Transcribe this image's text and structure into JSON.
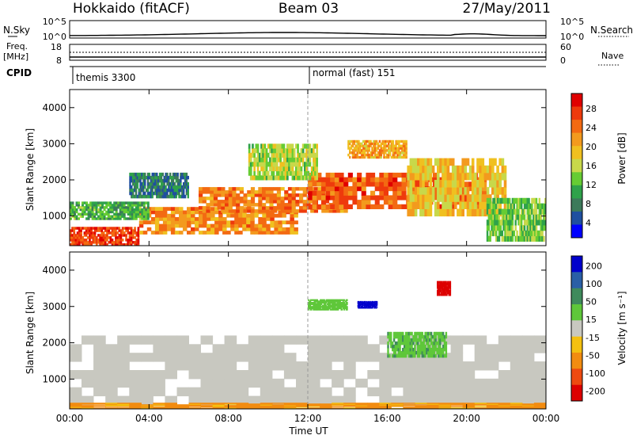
{
  "header": {
    "station": "Hokkaido (fitACF)",
    "beam": "Beam 03",
    "date": "27/May/2011"
  },
  "param_panels": {
    "nsky_label": "N.Sky",
    "nsky_ticks": [
      "10^5",
      "10^0"
    ],
    "nsearch_label": "N.Search",
    "nsearch_ticks": [
      "10^5",
      "10^0"
    ],
    "freq_label": "Freq.",
    "freq_unit": "[MHz]",
    "freq_ticks": [
      "18",
      "8"
    ],
    "nave_label": "Nave",
    "nave_ticks": [
      "60",
      "0"
    ],
    "cpid_label": "CPID",
    "cpid_segments": [
      {
        "start_hour": 0,
        "text": "themis 3300"
      },
      {
        "start_hour": 12,
        "text": "normal (fast) 151"
      }
    ]
  },
  "colors": {
    "power": [
      "#0000ff",
      "#1f4fa0",
      "#3c7a5a",
      "#2fa24a",
      "#66cc33",
      "#c8d84a",
      "#f0c020",
      "#f39a1e",
      "#f36a12",
      "#ee3a0c",
      "#e00000"
    ],
    "velocity": [
      "#0000cc",
      "#2a5fa6",
      "#3f8a5c",
      "#5fc73a",
      "#c8c8c0",
      "#f4c010",
      "#f28c10",
      "#ee4a10",
      "#dd0000"
    ]
  },
  "chart_data": [
    {
      "type": "heatmap",
      "title": "",
      "xlabel": "",
      "ylabel": "Slant Range [km]",
      "xlim": [
        0,
        24
      ],
      "ylim": [
        180,
        4500
      ],
      "x_ticks": [
        0,
        4,
        8,
        12,
        16,
        20,
        24
      ],
      "y_ticks": [
        1000,
        2000,
        3000,
        4000
      ],
      "colorbar_label": "Power [dB]",
      "colorbar_range": [
        0,
        30
      ],
      "colorbar_ticks": [
        "28",
        "24",
        "20",
        "16",
        "12",
        "8",
        "4"
      ],
      "regions": [
        {
          "t0": 0.0,
          "t1": 3.5,
          "r0": 180,
          "r1": 700,
          "value": 27
        },
        {
          "t0": 3.5,
          "t1": 11.5,
          "r0": 500,
          "r1": 1250,
          "value": 22
        },
        {
          "t0": 6.5,
          "t1": 14.0,
          "r0": 1100,
          "r1": 1800,
          "value": 23
        },
        {
          "t0": 12.0,
          "t1": 21.0,
          "r0": 1200,
          "r1": 2200,
          "value": 25
        },
        {
          "t0": 9.0,
          "t1": 12.5,
          "r0": 2000,
          "r1": 3000,
          "value": 14
        },
        {
          "t0": 14.0,
          "t1": 17.0,
          "r0": 2600,
          "r1": 3100,
          "value": 20
        },
        {
          "t0": 17.0,
          "t1": 22.0,
          "r0": 1000,
          "r1": 2600,
          "value": 18
        },
        {
          "t0": 21.0,
          "t1": 24.0,
          "r0": 300,
          "r1": 1500,
          "value": 12
        },
        {
          "t0": 0.0,
          "t1": 4.0,
          "r0": 900,
          "r1": 1400,
          "value": 10
        },
        {
          "t0": 3.0,
          "t1": 6.0,
          "r0": 1500,
          "r1": 2200,
          "value": 6
        }
      ]
    },
    {
      "type": "heatmap",
      "title": "",
      "xlabel": "Time UT",
      "ylabel": "Slant Range [km]",
      "xlim": [
        0,
        24
      ],
      "ylim": [
        180,
        4500
      ],
      "x_ticks": [
        0,
        4,
        8,
        12,
        16,
        20,
        24
      ],
      "x_tick_labels": [
        "00:00",
        "04:00",
        "08:00",
        "12:00",
        "16:00",
        "20:00",
        "00:00"
      ],
      "y_ticks": [
        1000,
        2000,
        3000,
        4000
      ],
      "colorbar_label": "Velocity [m s⁻¹]",
      "colorbar_range": [
        -250,
        250
      ],
      "colorbar_ticks": [
        "200",
        "100",
        "50",
        "15",
        "-15",
        "-50",
        "-100",
        "-200"
      ],
      "regions": [
        {
          "t0": 0.0,
          "t1": 24.0,
          "r0": 300,
          "r1": 2200,
          "value": 0
        },
        {
          "t0": 14.5,
          "t1": 15.5,
          "r0": 2950,
          "r1": 3150,
          "value": 220
        },
        {
          "t0": 16.0,
          "t1": 19.0,
          "r0": 1600,
          "r1": 2300,
          "value": 40
        },
        {
          "t0": 12.0,
          "t1": 14.0,
          "r0": 2900,
          "r1": 3200,
          "value": 35
        },
        {
          "t0": 0.0,
          "t1": 24.0,
          "r0": 180,
          "r1": 350,
          "value": -60
        },
        {
          "t0": 18.5,
          "t1": 19.2,
          "r0": 3300,
          "r1": 3700,
          "value": -220
        }
      ]
    }
  ]
}
